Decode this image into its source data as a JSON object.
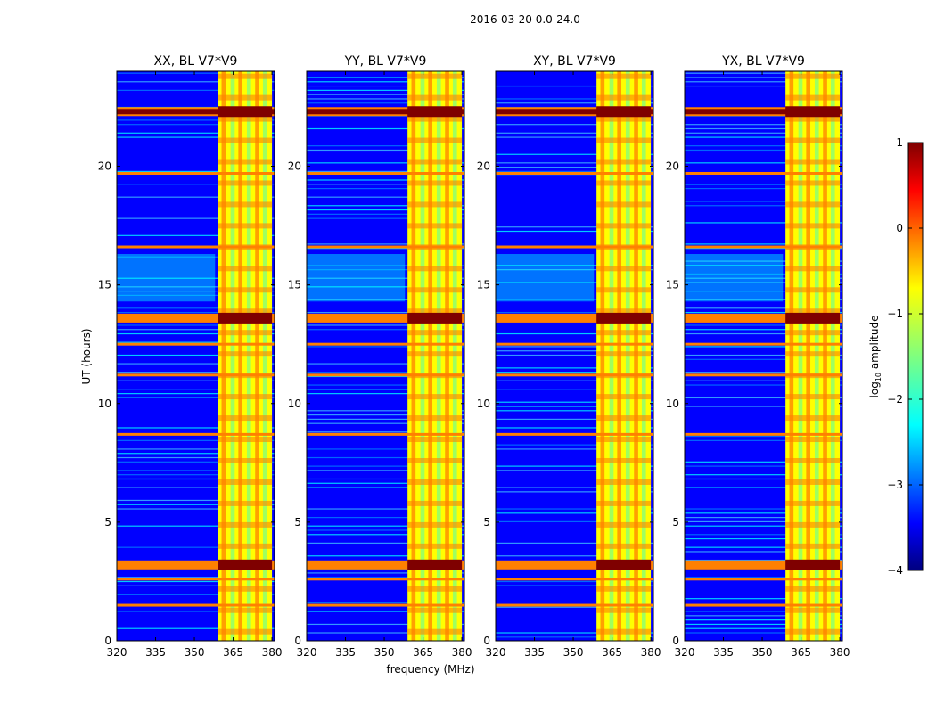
{
  "figure": {
    "title": "2016-03-20 0.0-24.0",
    "xlabel": "frequency (MHz)",
    "ylabel": "UT (hours)",
    "colorbar_label": "log10 amplitude",
    "colormap": "jet",
    "colorbar_ticks": [
      "1",
      "0",
      "−1",
      "−2",
      "−3",
      "−4"
    ],
    "colorbar_range": [
      -4,
      1
    ],
    "x_ticks": [
      "320",
      "335",
      "350",
      "365",
      "380"
    ],
    "y_ticks": [
      "0",
      "5",
      "10",
      "15",
      "20"
    ],
    "colors": {
      "jet_dark_red": "#7f0000",
      "jet_red": "#ff0000",
      "jet_orange": "#ff8000",
      "jet_yellow": "#ffff00",
      "jet_green": "#7fff7f",
      "jet_cyan": "#00ffff",
      "jet_blue": "#0080ff",
      "jet_deep_blue": "#0000ff",
      "jet_navy": "#00007f"
    }
  },
  "chart_data": [
    {
      "type": "heatmap",
      "title": "XX, BL V7*V9",
      "xlabel": "",
      "ylabel": "UT (hours)",
      "xlim": [
        320,
        381
      ],
      "ylim": [
        0,
        24
      ],
      "z_label": "log10 amplitude",
      "z_range": [
        -4,
        1
      ],
      "strong_band_mhz": [
        359,
        380
      ],
      "strong_rows_hours": [
        3.2,
        13.6,
        22.3
      ],
      "warm_rows_hours": [
        1.5,
        2.6,
        8.7,
        11.2,
        12.5,
        16.6,
        19.7
      ]
    },
    {
      "type": "heatmap",
      "title": "YY, BL V7*V9",
      "xlabel": "frequency (MHz)",
      "ylabel": "",
      "xlim": [
        320,
        381
      ],
      "ylim": [
        0,
        24
      ],
      "z_label": "log10 amplitude",
      "z_range": [
        -4,
        1
      ],
      "strong_band_mhz": [
        359,
        380
      ],
      "strong_rows_hours": [
        3.2,
        13.6,
        22.3
      ],
      "warm_rows_hours": [
        1.5,
        2.6,
        8.7,
        11.2,
        12.5,
        16.6,
        19.7
      ]
    },
    {
      "type": "heatmap",
      "title": "XY, BL V7*V9",
      "xlabel": "",
      "ylabel": "",
      "xlim": [
        320,
        381
      ],
      "ylim": [
        0,
        24
      ],
      "z_label": "log10 amplitude",
      "z_range": [
        -4,
        1
      ],
      "strong_band_mhz": [
        359,
        380
      ],
      "strong_rows_hours": [
        3.2,
        13.6,
        22.3
      ],
      "warm_rows_hours": [
        1.5,
        2.6,
        8.7,
        11.2,
        12.5,
        16.6,
        19.7
      ]
    },
    {
      "type": "heatmap",
      "title": "YX, BL V7*V9",
      "xlabel": "",
      "ylabel": "",
      "xlim": [
        320,
        381
      ],
      "ylim": [
        0,
        24
      ],
      "z_label": "log10 amplitude",
      "z_range": [
        -4,
        1
      ],
      "strong_band_mhz": [
        359,
        380
      ],
      "strong_rows_hours": [
        3.2,
        13.6,
        22.3
      ],
      "warm_rows_hours": [
        1.5,
        2.6,
        8.7,
        11.2,
        12.5,
        16.6,
        19.7
      ]
    }
  ]
}
